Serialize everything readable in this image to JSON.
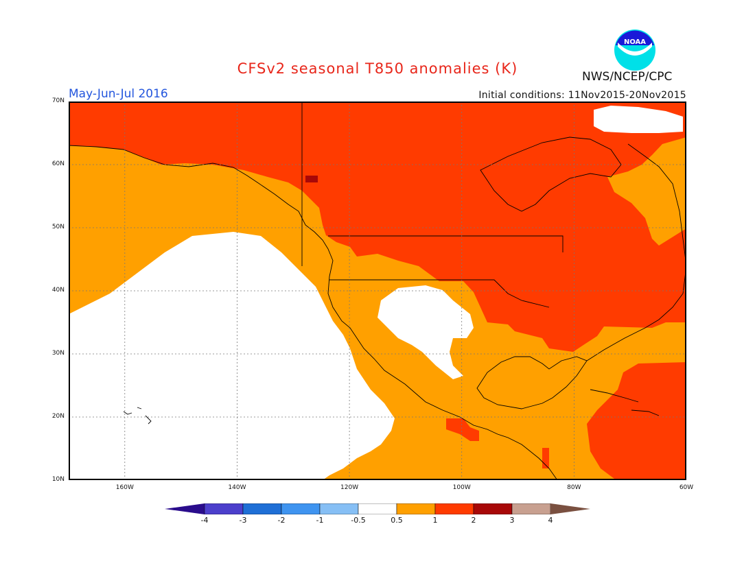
{
  "header": {
    "title": "CFSv2 seasonal T850 anomalies (K)",
    "period": "May-Jun-Jul 2016",
    "initial_conditions": "Initial conditions: 11Nov2015-20Nov2015",
    "organization": "NWS/NCEP/CPC",
    "logo_text": "NOAA"
  },
  "map": {
    "lat_labels": [
      "70N",
      "60N",
      "50N",
      "40N",
      "30N",
      "20N",
      "10N"
    ],
    "lon_labels": [
      "160W",
      "140W",
      "120W",
      "100W",
      "80W",
      "60W"
    ],
    "extent": {
      "lon_min": -170,
      "lon_max": -60,
      "lat_min": 10,
      "lat_max": 70
    }
  },
  "colorbar": {
    "labels": [
      "-4",
      "-3",
      "-2",
      "-1",
      "-0.5",
      "0.5",
      "1",
      "2",
      "3",
      "4"
    ],
    "colors": [
      "#2a0c8c",
      "#4c3fcc",
      "#1f6fd6",
      "#3f94f0",
      "#86bff5",
      "#ffffff",
      "#ffa000",
      "#ff3b00",
      "#a80808",
      "#c8a090",
      "#7a5040"
    ]
  },
  "colors": {
    "white": "#ffffff",
    "orange": "#ffa000",
    "red": "#ff3b00",
    "darkred": "#a80808"
  }
}
